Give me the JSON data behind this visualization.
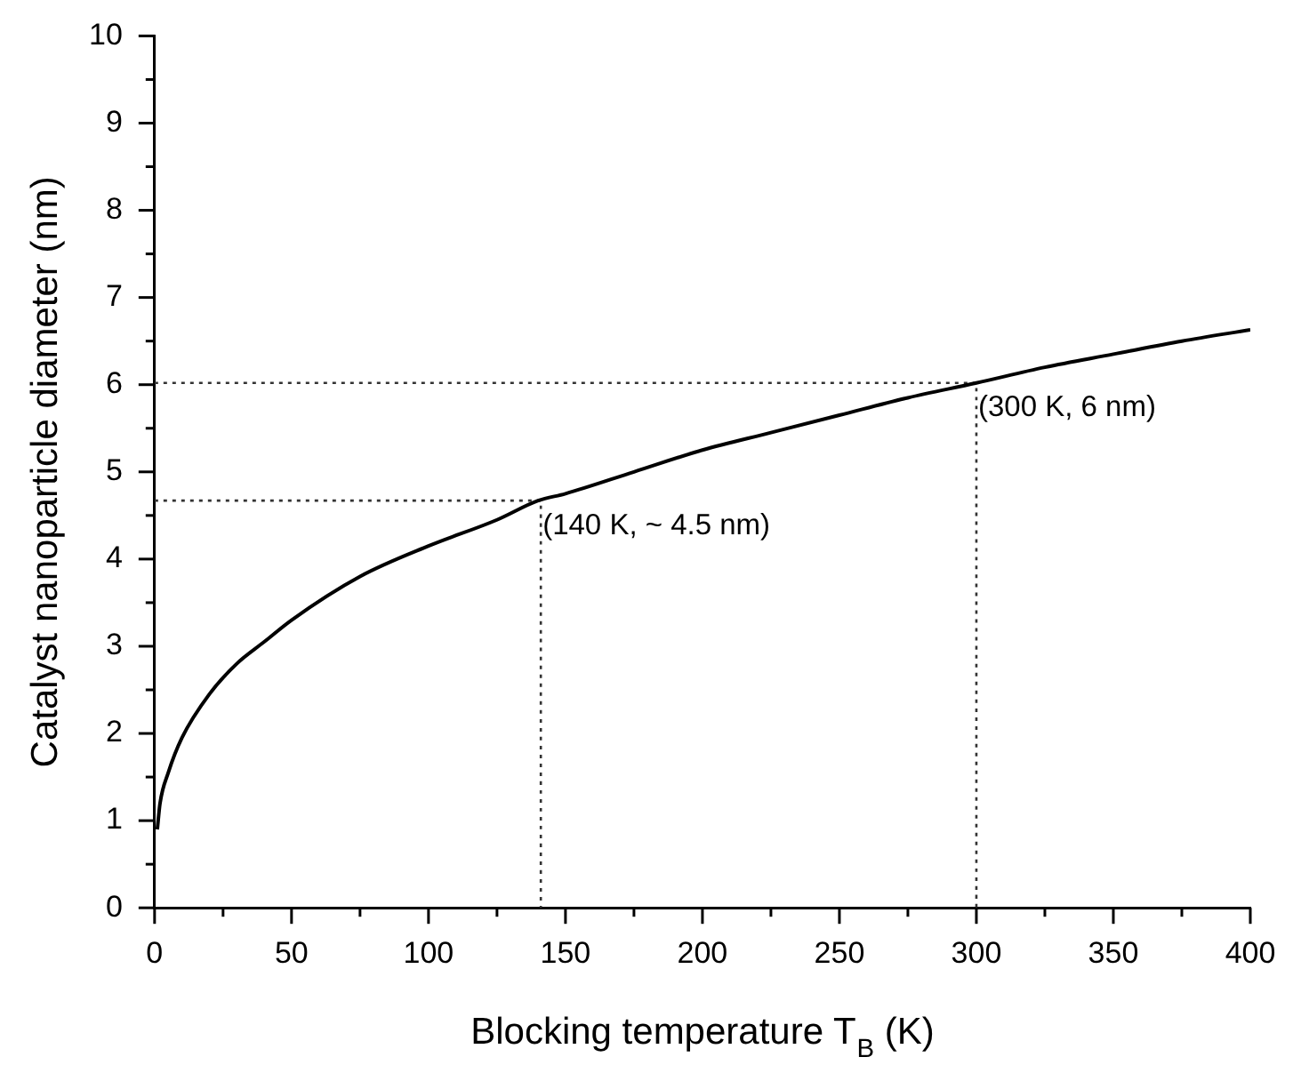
{
  "chart_data": {
    "type": "line",
    "xlabel": "Blocking temperature T$_{B}$ (K)",
    "ylabel": "Catalyst nanoparticle diameter (nm)",
    "xlim": [
      0,
      400
    ],
    "ylim": [
      0,
      10
    ],
    "xticks": [
      0,
      {
        "value": 25,
        "label": null
      },
      50,
      {
        "value": 75,
        "label": null
      },
      100,
      {
        "value": 125,
        "label": null
      },
      150,
      {
        "value": 175,
        "label": null
      },
      200,
      {
        "value": 225,
        "label": null
      },
      250,
      {
        "value": 275,
        "label": null
      },
      300,
      {
        "value": 325,
        "label": null
      },
      350,
      {
        "value": 375,
        "label": null
      },
      400
    ],
    "yticks": [
      0,
      {
        "value": 0.5,
        "label": null
      },
      1,
      {
        "value": 1.5,
        "label": null
      },
      2,
      {
        "value": 2.5,
        "label": null
      },
      3,
      {
        "value": 3.5,
        "label": null
      },
      4,
      {
        "value": 4.5,
        "label": null
      },
      5,
      {
        "value": 5.5,
        "label": null
      },
      6,
      {
        "value": 6.5,
        "label": null
      },
      7,
      {
        "value": 7.5,
        "label": null
      },
      8,
      {
        "value": 8.5,
        "label": null
      },
      9,
      {
        "value": 9.5,
        "label": null
      },
      10
    ],
    "grid": false,
    "legend": false,
    "marker": "none",
    "series": [
      {
        "color": "#000000",
        "line_style": "solid",
        "x": [
          1,
          2,
          5,
          10,
          20,
          30,
          40,
          50,
          75,
          100,
          125,
          140,
          150,
          175,
          200,
          225,
          250,
          275,
          300,
          325,
          350,
          375,
          400
        ],
        "values": [
          0.9,
          1.2,
          1.55,
          1.95,
          2.45,
          2.8,
          3.05,
          3.3,
          3.8,
          4.15,
          4.45,
          4.67,
          4.75,
          5.0,
          5.25,
          5.45,
          5.65,
          5.85,
          6.02,
          6.2,
          6.35,
          6.5,
          6.63
        ]
      },
      {
        "color": "#333333",
        "line_style": "dotted",
        "x": [
          0,
          141,
          141
        ],
        "values": [
          4.67,
          4.67,
          0
        ]
      },
      {
        "color": "#333333",
        "line_style": "dotted",
        "x": [
          0,
          300,
          300
        ],
        "values": [
          6.02,
          6.02,
          0
        ]
      }
    ],
    "annotations": [
      {
        "text": "(140 K, ~ 4.5 nm)",
        "x": 141,
        "y": 4.67
      },
      {
        "text": "(300 K, 6 nm)",
        "x": 300,
        "y": 6.02
      }
    ]
  }
}
